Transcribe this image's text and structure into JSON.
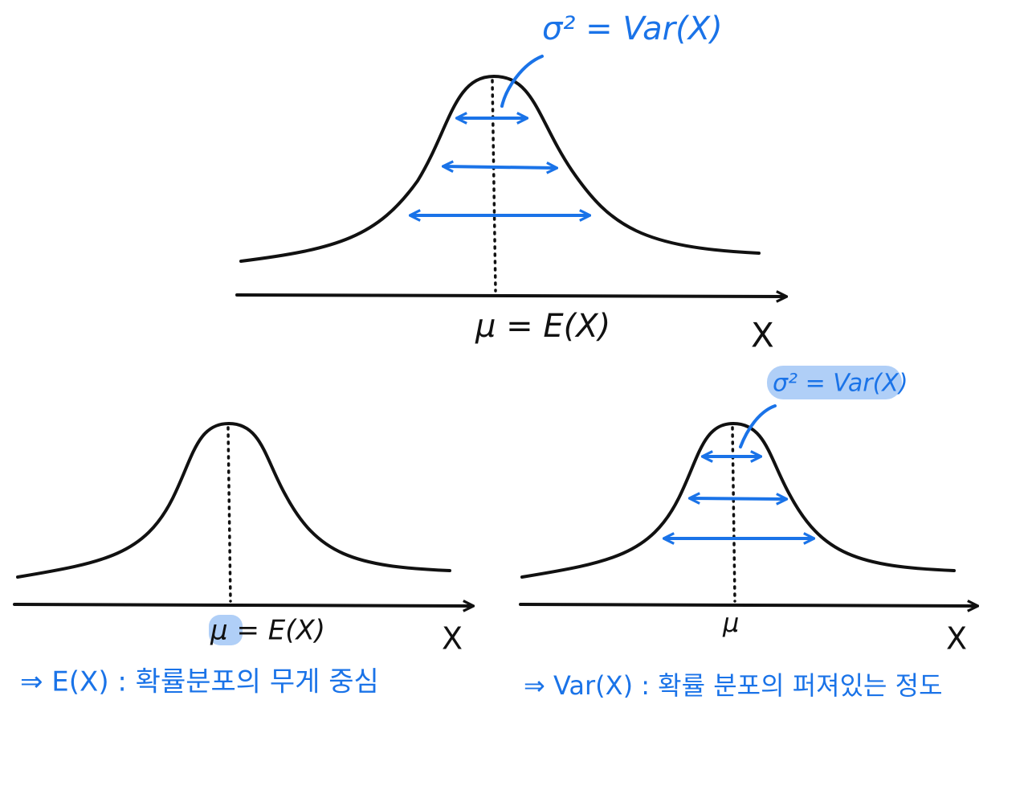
{
  "top": {
    "variance_label": "σ² = Var(X)",
    "mean_label": "μ = E(X)",
    "axis_label": "X"
  },
  "left": {
    "mean_label": "μ = E(X)",
    "axis_label": "X",
    "caption": "⇒ E(X) : 확률분포의 무게 중심"
  },
  "right": {
    "variance_label": "σ² = Var(X)",
    "mean_label": "μ",
    "axis_label": "X",
    "caption": "⇒ Var(X) : 확률 분포의 퍼져있는 정도"
  }
}
